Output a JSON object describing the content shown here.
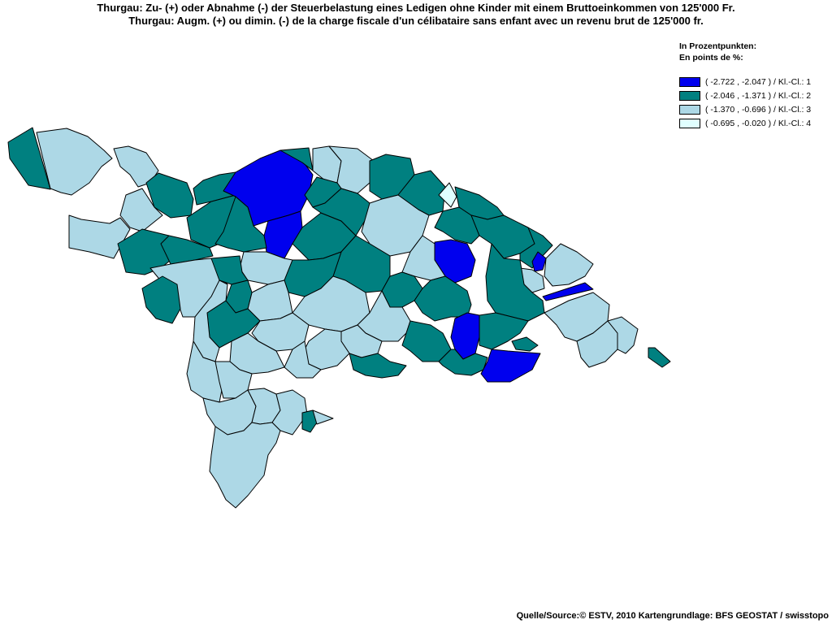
{
  "title": {
    "line_de": "Thurgau: Zu- (+) oder Abnahme (-) der Steuerbelastung eines Ledigen ohne Kinder mit einem Bruttoeinkommen von 125'000 Fr.",
    "line_fr": "Thurgau: Augm. (+) ou dimin. (-) de la charge fiscale d'un célibataire sans enfant avec un revenu brut de 125'000 fr."
  },
  "legend": {
    "heading_de": "In Prozentpunkten:",
    "heading_fr": "En points de %:",
    "classes": [
      {
        "label": "( -2.722 , -2.047 ) / Kl.-Cl.: 1",
        "color": "#0000ee"
      },
      {
        "label": "( -2.046 , -1.371 ) / Kl.-Cl.: 2",
        "color": "#008080"
      },
      {
        "label": "( -1.370 , -0.696 ) / Kl.-Cl.: 3",
        "color": "#add8e6"
      },
      {
        "label": "( -0.695 , -0.020 ) / Kl.-Cl.: 4",
        "color": "#e0ffff"
      }
    ]
  },
  "source": "Quelle/Source:© ESTV, 2010 Kartengrundlage: BFS GEOSTAT / swisstopo"
}
